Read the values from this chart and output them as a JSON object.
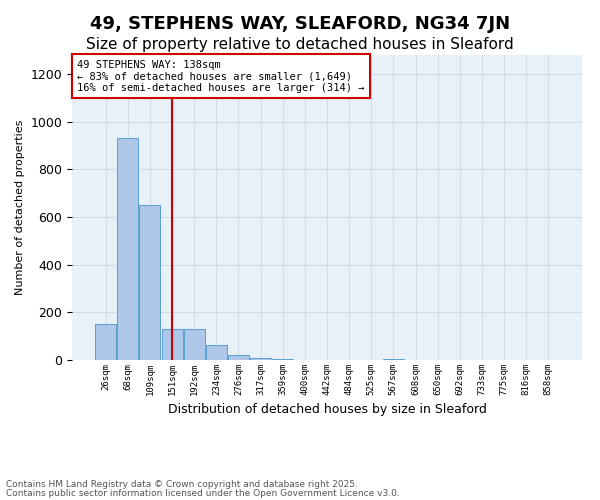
{
  "title": "49, STEPHENS WAY, SLEAFORD, NG34 7JN",
  "subtitle": "Size of property relative to detached houses in Sleaford",
  "xlabel": "Distribution of detached houses by size in Sleaford",
  "ylabel": "Number of detached properties",
  "bin_labels": [
    "26sqm",
    "68sqm",
    "109sqm",
    "151sqm",
    "192sqm",
    "234sqm",
    "276sqm",
    "317sqm",
    "359sqm",
    "400sqm",
    "442sqm",
    "484sqm",
    "525sqm",
    "567sqm",
    "608sqm",
    "650sqm",
    "692sqm",
    "733sqm",
    "775sqm",
    "816sqm",
    "858sqm"
  ],
  "values": [
    150,
    930,
    650,
    130,
    130,
    65,
    20,
    10,
    5,
    0,
    0,
    0,
    0,
    5,
    0,
    0,
    0,
    0,
    0,
    0,
    0
  ],
  "bar_color": "#aec6e8",
  "bar_edge_color": "#5a9fd4",
  "red_line_x": 2.975,
  "annotation_title": "49 STEPHENS WAY: 138sqm",
  "annotation_line1": "← 83% of detached houses are smaller (1,649)",
  "annotation_line2": "16% of semi-detached houses are larger (314) →",
  "ylim": [
    0,
    1280
  ],
  "yticks": [
    0,
    200,
    400,
    600,
    800,
    1000,
    1200
  ],
  "footer1": "Contains HM Land Registry data © Crown copyright and database right 2025.",
  "footer2": "Contains public sector information licensed under the Open Government Licence v3.0.",
  "title_fontsize": 13,
  "subtitle_fontsize": 11,
  "annotation_box_color": "#ffffff",
  "annotation_box_edge": "#cc0000",
  "red_line_color": "#cc0000",
  "grid_color": "#d0dce8",
  "bg_color": "#e8f0f8"
}
